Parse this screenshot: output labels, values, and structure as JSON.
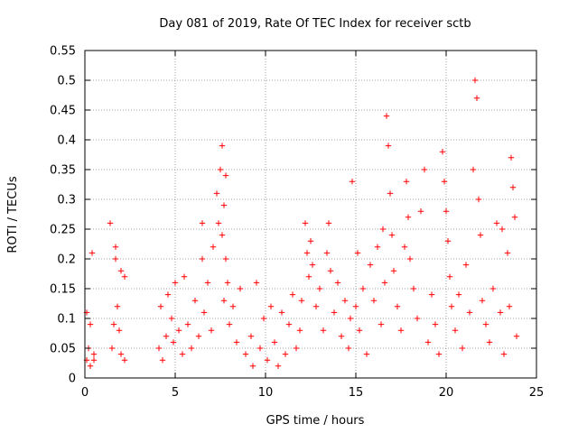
{
  "chart_data": {
    "type": "scatter",
    "title": "Day 081 of 2019, Rate Of TEC Index for receiver sctb",
    "xlabel": "GPS time / hours",
    "ylabel": "ROTI / TECUs",
    "xlim": [
      0,
      25
    ],
    "ylim": [
      0,
      0.55
    ],
    "xticks": [
      0,
      5,
      10,
      15,
      20,
      25
    ],
    "yticks": [
      0,
      0.05,
      0.1,
      0.15,
      0.2,
      0.25,
      0.3,
      0.35,
      0.4,
      0.45,
      0.5,
      0.55
    ],
    "xtick_labels": [
      "0",
      "5",
      "10",
      "15",
      "20",
      "25"
    ],
    "ytick_labels": [
      "0",
      "0.05",
      "0.1",
      "0.15",
      "0.2",
      "0.25",
      "0.3",
      "0.35",
      "0.4",
      "0.45",
      "0.5",
      "0.55"
    ],
    "grid": true,
    "marker": "+",
    "marker_color": "#ff0000",
    "series": [
      {
        "name": "ROTI",
        "x": [
          0.1,
          0.1,
          0.2,
          0.3,
          0.3,
          0.4,
          0.5,
          0.5,
          1.4,
          1.5,
          1.6,
          1.7,
          1.7,
          1.8,
          1.9,
          2.0,
          2.0,
          2.2,
          2.2,
          4.1,
          4.2,
          4.3,
          4.5,
          4.6,
          4.8,
          4.9,
          5.0,
          5.2,
          5.4,
          5.5,
          5.7,
          5.9,
          6.1,
          6.3,
          6.5,
          6.5,
          6.6,
          6.8,
          7.0,
          7.1,
          7.3,
          7.4,
          7.5,
          7.6,
          7.6,
          7.7,
          7.7,
          7.8,
          7.8,
          7.9,
          8.0,
          8.2,
          8.4,
          8.6,
          8.9,
          9.2,
          9.3,
          9.5,
          9.7,
          9.9,
          10.1,
          10.3,
          10.5,
          10.7,
          10.9,
          11.1,
          11.3,
          11.5,
          11.7,
          11.9,
          12.0,
          12.2,
          12.3,
          12.4,
          12.5,
          12.6,
          12.8,
          13.0,
          13.2,
          13.4,
          13.5,
          13.6,
          13.8,
          14.0,
          14.2,
          14.4,
          14.6,
          14.7,
          14.8,
          15.0,
          15.1,
          15.2,
          15.4,
          15.6,
          15.8,
          16.0,
          16.2,
          16.4,
          16.5,
          16.6,
          16.7,
          16.8,
          16.9,
          17.0,
          17.1,
          17.3,
          17.5,
          17.7,
          17.8,
          17.9,
          18.0,
          18.2,
          18.4,
          18.6,
          18.8,
          19.0,
          19.2,
          19.4,
          19.6,
          19.8,
          19.9,
          20.0,
          20.1,
          20.2,
          20.3,
          20.5,
          20.7,
          20.9,
          21.1,
          21.3,
          21.5,
          21.6,
          21.7,
          21.8,
          21.9,
          22.0,
          22.2,
          22.4,
          22.6,
          22.8,
          23.0,
          23.1,
          23.2,
          23.4,
          23.5,
          23.6,
          23.7,
          23.8,
          23.9
        ],
        "y": [
          0.03,
          0.11,
          0.05,
          0.09,
          0.02,
          0.21,
          0.04,
          0.03,
          0.26,
          0.05,
          0.09,
          0.2,
          0.22,
          0.12,
          0.08,
          0.04,
          0.18,
          0.17,
          0.03,
          0.05,
          0.12,
          0.03,
          0.07,
          0.14,
          0.1,
          0.06,
          0.16,
          0.08,
          0.04,
          0.17,
          0.09,
          0.05,
          0.13,
          0.07,
          0.26,
          0.2,
          0.11,
          0.16,
          0.08,
          0.22,
          0.31,
          0.26,
          0.35,
          0.24,
          0.39,
          0.29,
          0.13,
          0.34,
          0.2,
          0.16,
          0.09,
          0.12,
          0.06,
          0.15,
          0.04,
          0.07,
          0.02,
          0.16,
          0.05,
          0.1,
          0.03,
          0.12,
          0.06,
          0.02,
          0.11,
          0.04,
          0.09,
          0.14,
          0.05,
          0.08,
          0.13,
          0.26,
          0.21,
          0.17,
          0.23,
          0.19,
          0.12,
          0.15,
          0.08,
          0.21,
          0.26,
          0.18,
          0.11,
          0.16,
          0.07,
          0.13,
          0.05,
          0.1,
          0.33,
          0.12,
          0.21,
          0.08,
          0.15,
          0.04,
          0.19,
          0.13,
          0.22,
          0.09,
          0.25,
          0.16,
          0.44,
          0.39,
          0.31,
          0.24,
          0.18,
          0.12,
          0.08,
          0.22,
          0.33,
          0.27,
          0.2,
          0.15,
          0.1,
          0.28,
          0.35,
          0.06,
          0.14,
          0.09,
          0.04,
          0.38,
          0.33,
          0.28,
          0.23,
          0.17,
          0.12,
          0.08,
          0.14,
          0.05,
          0.19,
          0.11,
          0.35,
          0.5,
          0.47,
          0.3,
          0.24,
          0.13,
          0.09,
          0.06,
          0.15,
          0.26,
          0.11,
          0.25,
          0.04,
          0.21,
          0.12,
          0.37,
          0.32,
          0.27,
          0.07
        ]
      }
    ]
  }
}
